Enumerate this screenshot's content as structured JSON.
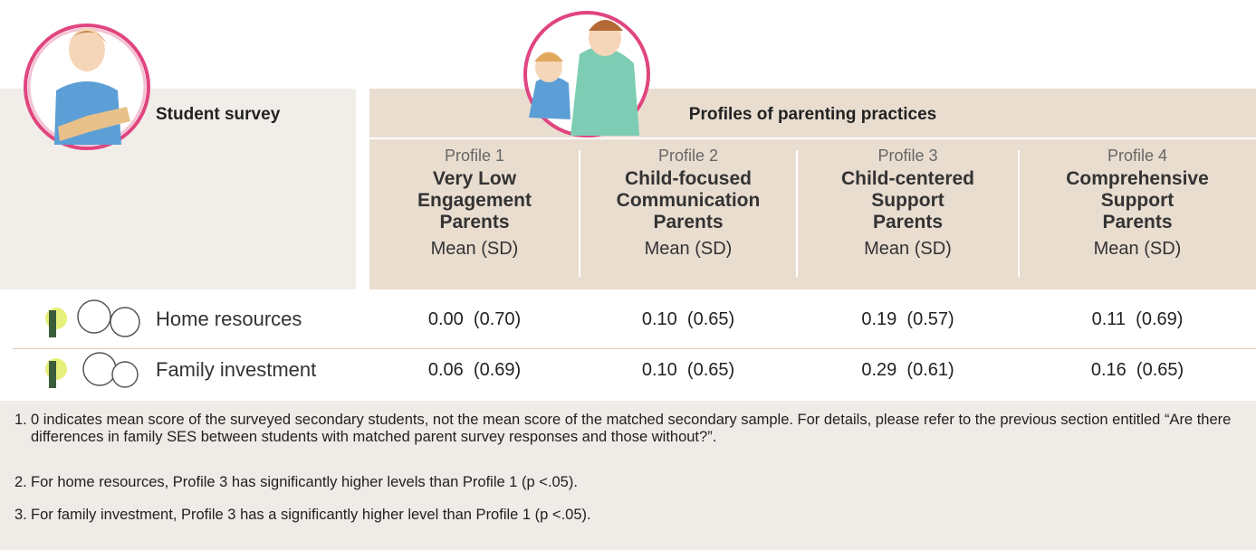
{
  "header": {
    "left": "Student survey",
    "group": "Profiles of parenting practices"
  },
  "profiles": [
    {
      "label": "Profile 1",
      "name": [
        "Very Low",
        "Engagement",
        "Parents"
      ],
      "stat": "Mean (SD)"
    },
    {
      "label": "Profile 2",
      "name": [
        "Child-focused",
        "Communication",
        "Parents"
      ],
      "stat": "Mean (SD)"
    },
    {
      "label": "Profile 3",
      "name": [
        "Child-centered",
        "Support",
        "Parents"
      ],
      "stat": "Mean (SD)"
    },
    {
      "label": "Profile 4",
      "name": [
        "Comprehensive",
        "Support",
        "Parents"
      ],
      "stat": "Mean (SD)"
    }
  ],
  "rows": [
    {
      "label": "Home resources",
      "cells": [
        [
          "0.00",
          "(0.70)"
        ],
        [
          "0.10",
          "(0.65)"
        ],
        [
          "0.19",
          "(0.57)"
        ],
        [
          "0.11",
          "(0.69)"
        ]
      ]
    },
    {
      "label": "Family investment",
      "cells": [
        [
          "0.06",
          "(0.69)"
        ],
        [
          "0.10",
          "(0.65)"
        ],
        [
          "0.29",
          "(0.61)"
        ],
        [
          "0.16",
          "(0.65)"
        ]
      ]
    }
  ],
  "notes": [
    {
      "num": "1.",
      "text": "0 indicates mean score of the surveyed secondary students, not the mean score of the matched secondary sample. For details, please refer to the previous section entitled “Are there differences in family SES between students with matched parent survey responses and those without?”."
    },
    {
      "num": "2.",
      "text": "For home resources, Profile 3 has significantly higher levels than Profile 1 (p <.05)."
    },
    {
      "num": "3.",
      "text": "For family investment, Profile 3 has a significantly higher level than Profile 1 (p <.05)."
    }
  ]
}
